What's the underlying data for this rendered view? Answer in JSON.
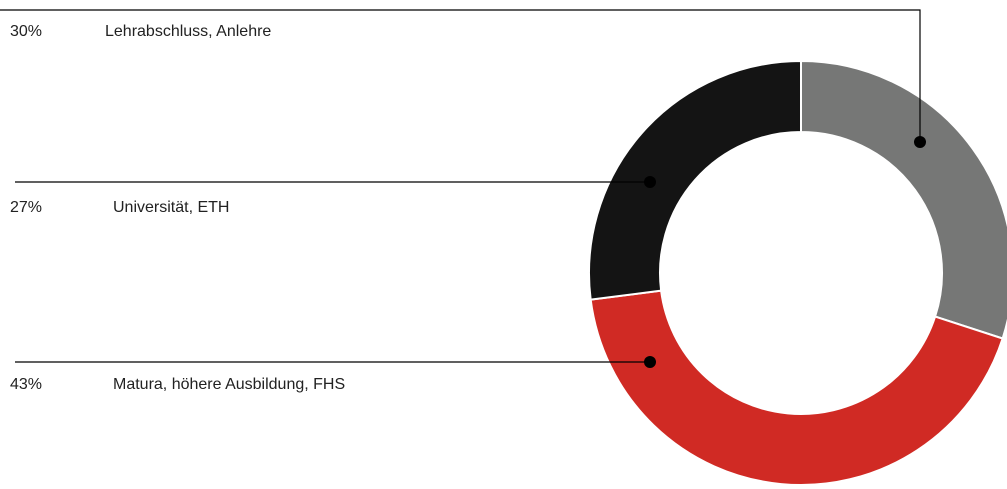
{
  "chart_data": {
    "type": "pie",
    "donut": true,
    "categories": [
      "Lehrabschluss, Anlehre",
      "Matura, höhere Ausbildung, FHS",
      "Universität, ETH"
    ],
    "values": [
      30,
      43,
      27
    ],
    "value_labels": [
      "30%",
      "43%",
      "27%"
    ],
    "colors": [
      "#767776",
      "#d02a24",
      "#141414"
    ]
  }
}
